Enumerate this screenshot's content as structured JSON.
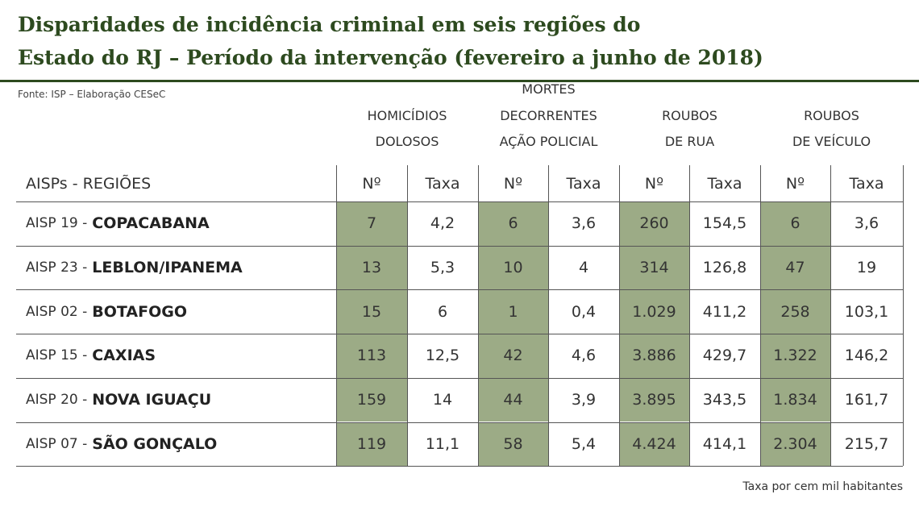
{
  "title": [
    "Disparidades de incidência criminal em seis regiões do",
    "Estado do RJ – Período da intervenção (fevereiro a junho de 2018)"
  ],
  "source": "Fonte: ISP – Elaboração CESeC",
  "table": {
    "groups": [
      [
        "HOMICÍDIOS",
        "DOLOSOS"
      ],
      [
        "MORTES",
        "DECORRENTES",
        "AÇÃO POLICIAL"
      ],
      [
        "ROUBOS",
        "DE RUA"
      ],
      [
        "ROUBOS",
        "DE VEÍCULO"
      ]
    ],
    "header": [
      "AISPs - REGIÕES",
      "Nº",
      "Taxa",
      "Nº",
      "Taxa",
      "Nº",
      "Taxa",
      "Nº",
      "Taxa"
    ],
    "rows": [
      {
        "code": "AISP 19 -",
        "region": "COPACABANA",
        "cells": [
          "7",
          "4,2",
          "6",
          "3,6",
          "260",
          "154,5",
          "6",
          "3,6"
        ]
      },
      {
        "code": "AISP 23 -",
        "region": "LEBLON/IPANEMA",
        "cells": [
          "13",
          "5,3",
          "10",
          "4",
          "314",
          "126,8",
          "47",
          "19"
        ]
      },
      {
        "code": "AISP 02 -",
        "region": "BOTAFOGO",
        "cells": [
          "15",
          "6",
          "1",
          "0,4",
          "1.029",
          "411,2",
          "258",
          "103,1"
        ]
      },
      {
        "code": "AISP 15 -",
        "region": "CAXIAS",
        "cells": [
          "113",
          "12,5",
          "42",
          "4,6",
          "3.886",
          "429,7",
          "1.322",
          "146,2"
        ]
      },
      {
        "code": "AISP 20 -",
        "region": "NOVA IGUAÇU",
        "cells": [
          "159",
          "14",
          "44",
          "3,9",
          "3.895",
          "343,5",
          "1.834",
          "161,7"
        ]
      },
      {
        "code": "AISP 07 -",
        "region": "SÃO GONÇALO",
        "cells": [
          "119",
          "11,1",
          "58",
          "5,4",
          "4.424",
          "414,1",
          "2.304",
          "215,7"
        ]
      }
    ]
  },
  "note": "Taxa por cem mil habitantes"
}
